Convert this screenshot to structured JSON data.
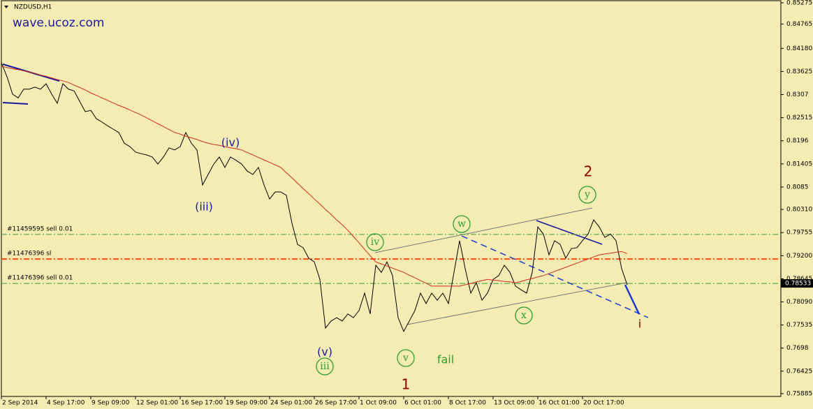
{
  "chart_data": {
    "type": "line",
    "symbol": "NZDUSD,H1",
    "watermark": "wave.ucoz.com",
    "categories": [
      "2 Sep 2014",
      null,
      null,
      null,
      null,
      null,
      null,
      null,
      "4 Sep 17:00",
      null,
      null,
      null,
      null,
      null,
      null,
      null,
      "9 Sep 09:00",
      null,
      null,
      null,
      null,
      null,
      null,
      null,
      "12 Sep 01:00",
      null,
      null,
      null,
      null,
      null,
      null,
      null,
      "16 Sep 17:00",
      null,
      null,
      null,
      null,
      null,
      null,
      null,
      "19 Sep 09:00",
      null,
      null,
      null,
      null,
      null,
      null,
      null,
      "24 Sep 01:00",
      null,
      null,
      null,
      null,
      null,
      null,
      null,
      "26 Sep 17:00",
      null,
      null,
      null,
      null,
      null,
      null,
      null,
      "1 Oct 09:00",
      null,
      null,
      null,
      null,
      null,
      null,
      null,
      "6 Oct 01:00",
      null,
      null,
      null,
      null,
      null,
      null,
      null,
      "8 Oct 17:00",
      null,
      null,
      null,
      null,
      null,
      null,
      null,
      "13 Oct 09:00",
      null,
      null,
      null,
      null,
      null,
      null,
      null,
      "16 Oct 01:00",
      null,
      null,
      null,
      null,
      null,
      null,
      null,
      "20 Oct 17:00",
      null,
      null,
      null,
      null,
      null,
      null,
      null,
      null
    ],
    "series": [
      {
        "color": "#000000",
        "values": [
          0.8383,
          0.835,
          0.8308,
          0.8299,
          0.832,
          0.832,
          0.8325,
          0.832,
          0.8333,
          0.8308,
          0.8286,
          0.8333,
          0.832,
          0.8316,
          0.8291,
          0.8266,
          0.8269,
          0.8249,
          0.8241,
          0.8232,
          0.8224,
          0.8216,
          0.819,
          0.8182,
          0.8169,
          0.8165,
          0.8162,
          0.8157,
          0.814,
          0.8157,
          0.8179,
          0.8174,
          0.8182,
          0.8216,
          0.819,
          0.8174,
          0.809,
          0.8115,
          0.814,
          0.8157,
          0.8132,
          0.8157,
          0.8149,
          0.814,
          0.8123,
          0.8115,
          0.8132,
          0.809,
          0.8056,
          0.8073,
          0.8073,
          0.8065,
          0.7998,
          0.7947,
          0.7939,
          0.7914,
          0.7905,
          0.7863,
          0.7746,
          0.7763,
          0.7771,
          0.7763,
          0.778,
          0.7771,
          0.7788,
          0.783,
          0.778,
          0.7897,
          0.788,
          0.7905,
          0.7872,
          0.7771,
          0.7738,
          0.7763,
          0.7788,
          0.783,
          0.7805,
          0.783,
          0.7813,
          0.783,
          0.7805,
          0.788,
          0.7956,
          0.7889,
          0.783,
          0.7855,
          0.7813,
          0.783,
          0.7863,
          0.7872,
          0.7897,
          0.788,
          0.7847,
          0.7838,
          0.783,
          0.788,
          0.7989,
          0.7972,
          0.7922,
          0.7956,
          0.7947,
          0.7914,
          0.7937,
          0.7939,
          0.7956,
          0.7972,
          0.8006,
          0.7989,
          0.7964,
          0.7972,
          0.7956,
          0.7889,
          0.785
        ]
      },
      {
        "color": "#d42a1c",
        "values": [
          0.8375,
          0.8372,
          0.8369,
          0.8367,
          0.8364,
          0.8361,
          0.8358,
          0.8354,
          0.8351,
          0.8347,
          0.8343,
          0.834,
          0.8336,
          0.833,
          0.8324,
          0.8318,
          0.8311,
          0.8305,
          0.8299,
          0.8293,
          0.8287,
          0.8281,
          0.8276,
          0.827,
          0.8264,
          0.8258,
          0.8251,
          0.8244,
          0.8237,
          0.823,
          0.8223,
          0.8216,
          0.8212,
          0.8207,
          0.8203,
          0.8199,
          0.8194,
          0.819,
          0.8187,
          0.8185,
          0.8182,
          0.8179,
          0.8177,
          0.8174,
          0.8168,
          0.8162,
          0.8156,
          0.815,
          0.8144,
          0.8138,
          0.8132,
          0.8119,
          0.8107,
          0.8094,
          0.8081,
          0.8069,
          0.8056,
          0.8044,
          0.8031,
          0.8019,
          0.8006,
          0.7994,
          0.7981,
          0.7966,
          0.7951,
          0.7935,
          0.792,
          0.7905,
          0.79,
          0.7895,
          0.789,
          0.7885,
          0.788,
          0.7873,
          0.7867,
          0.786,
          0.7854,
          0.7847,
          0.7847,
          0.7847,
          0.7847,
          0.7847,
          0.7847,
          0.785,
          0.7853,
          0.7857,
          0.786,
          0.7863,
          0.7861,
          0.786,
          0.7858,
          0.7857,
          0.7855,
          0.7858,
          0.7862,
          0.7865,
          0.7869,
          0.7872,
          0.7877,
          0.7882,
          0.7887,
          0.7892,
          0.7897,
          0.7902,
          0.7907,
          0.7912,
          0.7917,
          0.7922,
          0.7924,
          0.7926,
          0.7928,
          0.793,
          0.7925
        ]
      }
    ],
    "ylim": [
      0.75885,
      0.85275
    ],
    "yticks": [
      0.85275,
      0.84765,
      {
        "value": 0.8418,
        "label": "0.84180"
      },
      0.83625,
      0.8307,
      0.82515,
      0.8196,
      0.81405,
      0.8085,
      {
        "value": 0.8031,
        "label": "0.80310"
      },
      0.79755,
      {
        "value": 0.792,
        "label": "0.79200"
      },
      0.78645,
      {
        "value": 0.7809,
        "label": "0.78090"
      },
      0.77535,
      0.7698,
      0.76425,
      0.75885
    ],
    "current_price": 0.78533,
    "hlines": [
      {
        "label": "#11459595 sell 0.01",
        "value": 0.7971,
        "color": "#2e9e2e"
      },
      {
        "label": "#11476396 sl",
        "value": 0.7912,
        "color": "#ff4a10"
      },
      {
        "label": "#11476396 sell 0.01",
        "value": 0.78533,
        "color": "#2e9e2e"
      }
    ],
    "annotations": [
      "(iv)",
      "(iii)",
      "(v)",
      "iii",
      "iv",
      "v",
      "w",
      "x",
      "y",
      "2",
      "1",
      "fail",
      "i"
    ]
  }
}
